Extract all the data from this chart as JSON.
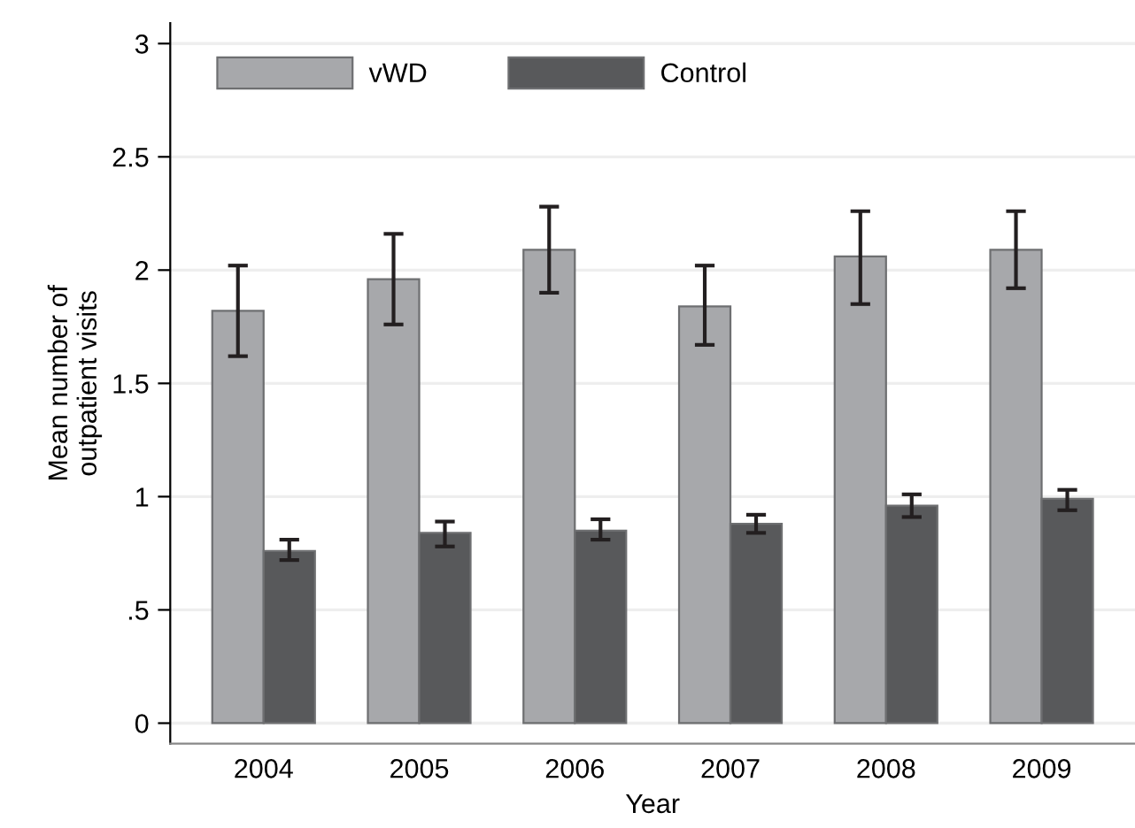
{
  "chart_data": {
    "type": "bar",
    "xlabel": "Year",
    "ylabel": "Mean number of\noutpatient visits",
    "categories": [
      "2004",
      "2005",
      "2006",
      "2007",
      "2008",
      "2009"
    ],
    "series": [
      {
        "name": "vWD",
        "color": "#a7a8ab",
        "values": [
          1.82,
          1.96,
          2.09,
          1.84,
          2.06,
          2.09
        ],
        "errors": [
          [
            1.62,
            2.02
          ],
          [
            1.76,
            2.16
          ],
          [
            1.9,
            2.28
          ],
          [
            1.67,
            2.02
          ],
          [
            1.85,
            2.26
          ],
          [
            1.92,
            2.26
          ]
        ]
      },
      {
        "name": "Control",
        "color": "#58595b",
        "values": [
          0.76,
          0.84,
          0.85,
          0.88,
          0.96,
          0.99
        ],
        "errors": [
          [
            0.72,
            0.81
          ],
          [
            0.78,
            0.89
          ],
          [
            0.81,
            0.9
          ],
          [
            0.84,
            0.92
          ],
          [
            0.91,
            1.01
          ],
          [
            0.94,
            1.03
          ]
        ]
      }
    ],
    "ylim": [
      -0.09,
      3.09
    ],
    "yticks": [
      0,
      {
        "value": 0.5,
        "label": ".5"
      },
      1,
      1.5,
      2,
      2.5,
      3
    ],
    "grid": "y",
    "legend": "top left"
  }
}
